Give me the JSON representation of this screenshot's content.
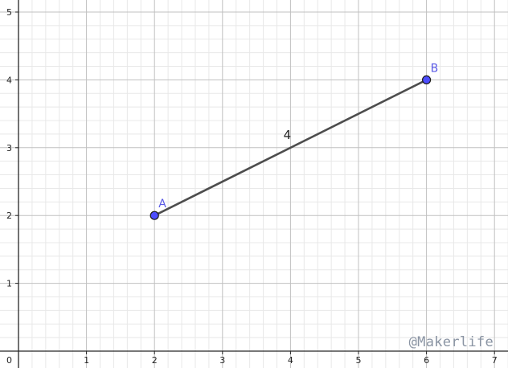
{
  "watermark": "@Makerlife",
  "colors": {
    "major_grid": "#c0c0c0",
    "minor_grid": "#e8e8e8",
    "axis": "#262626",
    "segment": "#4d4d4d",
    "point_fill": "#4d4dff",
    "point_stroke": "#1a1a1a",
    "point_label": "#5a5ae6"
  },
  "chart_data": {
    "type": "scatter",
    "xlim": [
      0,
      7.4
    ],
    "ylim": [
      0,
      5.2
    ],
    "x_ticks": [
      1,
      2,
      3,
      4,
      5,
      6,
      7
    ],
    "y_ticks": [
      1,
      2,
      3,
      4,
      5
    ],
    "origin_label": "0",
    "minor_divisions": 5,
    "grid": true,
    "points": [
      {
        "label": "A",
        "x": 2,
        "y": 2
      },
      {
        "label": "B",
        "x": 6,
        "y": 4
      }
    ],
    "segments": [
      {
        "from": "A",
        "to": "B",
        "label": "4",
        "label_at": [
          4,
          3.2
        ]
      }
    ]
  }
}
